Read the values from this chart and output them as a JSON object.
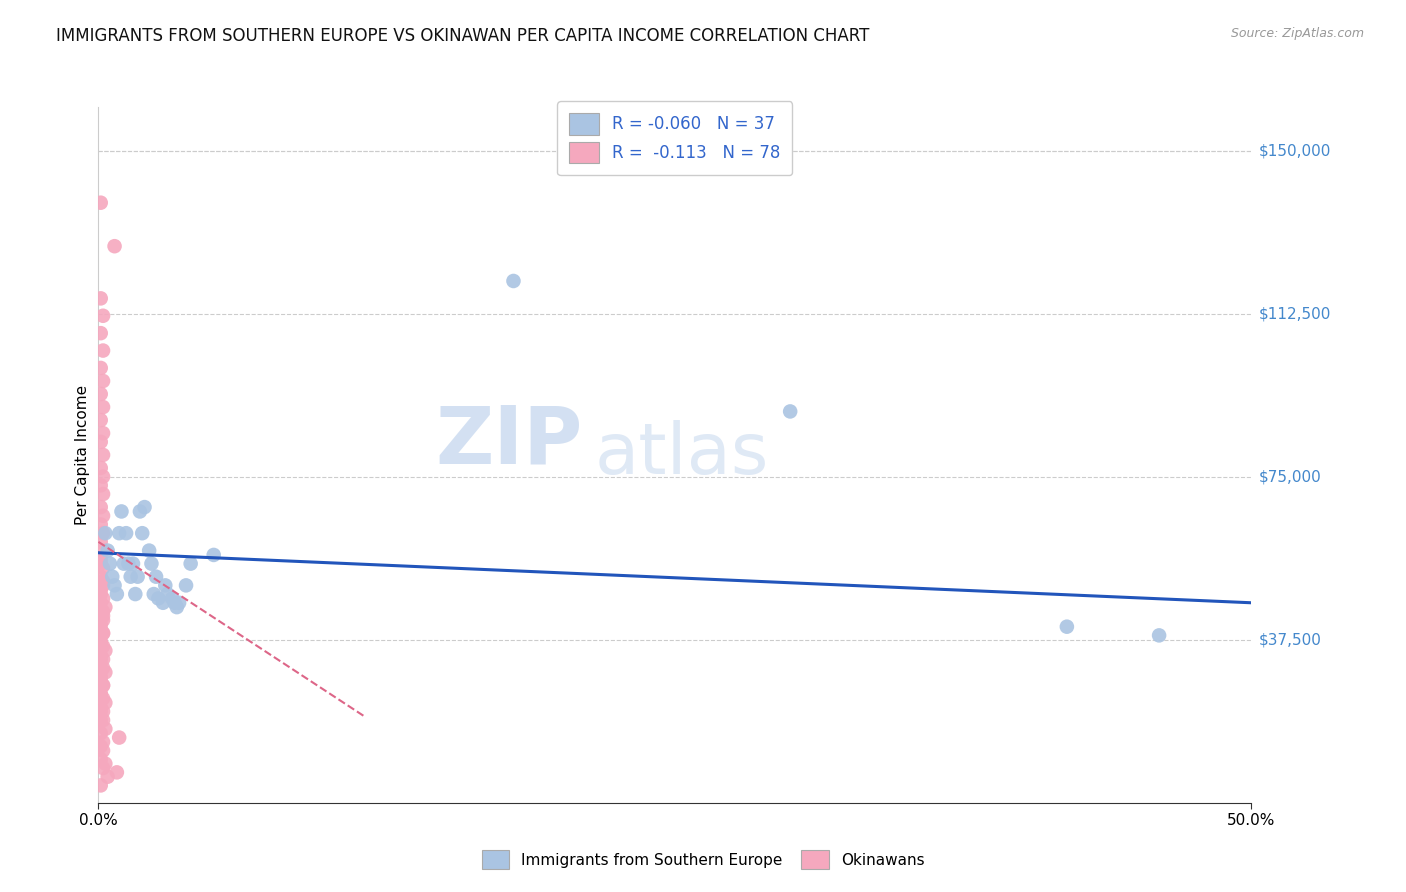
{
  "title": "IMMIGRANTS FROM SOUTHERN EUROPE VS OKINAWAN PER CAPITA INCOME CORRELATION CHART",
  "source": "Source: ZipAtlas.com",
  "ylabel": "Per Capita Income",
  "xlim": [
    0.0,
    0.5
  ],
  "ylim": [
    0,
    160000
  ],
  "ytick_vals": [
    37500,
    75000,
    112500,
    150000
  ],
  "ytick_labels": [
    "$37,500",
    "$75,000",
    "$112,500",
    "$150,000"
  ],
  "legend_blue_r": "-0.060",
  "legend_blue_n": "37",
  "legend_pink_r": "-0.113",
  "legend_pink_n": "78",
  "blue_color": "#aac4e2",
  "pink_color": "#f5a8be",
  "blue_line_color": "#2255bb",
  "pink_line_color": "#dd6688",
  "watermark_zip": "ZIP",
  "watermark_atlas": "atlas",
  "blue_scatter": [
    [
      0.003,
      62000
    ],
    [
      0.004,
      58000
    ],
    [
      0.005,
      55000
    ],
    [
      0.006,
      52000
    ],
    [
      0.007,
      50000
    ],
    [
      0.008,
      48000
    ],
    [
      0.009,
      62000
    ],
    [
      0.01,
      67000
    ],
    [
      0.011,
      55000
    ],
    [
      0.012,
      62000
    ],
    [
      0.013,
      55000
    ],
    [
      0.014,
      52000
    ],
    [
      0.015,
      55000
    ],
    [
      0.016,
      48000
    ],
    [
      0.017,
      52000
    ],
    [
      0.018,
      67000
    ],
    [
      0.019,
      62000
    ],
    [
      0.02,
      68000
    ],
    [
      0.022,
      58000
    ],
    [
      0.023,
      55000
    ],
    [
      0.024,
      48000
    ],
    [
      0.025,
      52000
    ],
    [
      0.026,
      47000
    ],
    [
      0.028,
      46000
    ],
    [
      0.029,
      50000
    ],
    [
      0.03,
      48000
    ],
    [
      0.032,
      47000
    ],
    [
      0.033,
      46000
    ],
    [
      0.034,
      45000
    ],
    [
      0.035,
      46000
    ],
    [
      0.038,
      50000
    ],
    [
      0.04,
      55000
    ],
    [
      0.05,
      57000
    ],
    [
      0.18,
      120000
    ],
    [
      0.3,
      90000
    ],
    [
      0.42,
      40500
    ],
    [
      0.46,
      38500
    ]
  ],
  "pink_scatter": [
    [
      0.001,
      138000
    ],
    [
      0.007,
      128000
    ],
    [
      0.001,
      116000
    ],
    [
      0.002,
      112000
    ],
    [
      0.001,
      108000
    ],
    [
      0.002,
      104000
    ],
    [
      0.001,
      100000
    ],
    [
      0.002,
      97000
    ],
    [
      0.001,
      94000
    ],
    [
      0.002,
      91000
    ],
    [
      0.001,
      88000
    ],
    [
      0.002,
      85000
    ],
    [
      0.001,
      83000
    ],
    [
      0.002,
      80000
    ],
    [
      0.001,
      77000
    ],
    [
      0.002,
      75000
    ],
    [
      0.001,
      73000
    ],
    [
      0.002,
      71000
    ],
    [
      0.001,
      68000
    ],
    [
      0.002,
      66000
    ],
    [
      0.001,
      64000
    ],
    [
      0.002,
      62000
    ],
    [
      0.001,
      60000
    ],
    [
      0.002,
      58000
    ],
    [
      0.001,
      56000
    ],
    [
      0.002,
      54000
    ],
    [
      0.001,
      52000
    ],
    [
      0.002,
      51000
    ],
    [
      0.001,
      49000
    ],
    [
      0.002,
      47000
    ],
    [
      0.001,
      46000
    ],
    [
      0.002,
      44000
    ],
    [
      0.001,
      43000
    ],
    [
      0.002,
      42000
    ],
    [
      0.001,
      40000
    ],
    [
      0.002,
      39000
    ],
    [
      0.001,
      37000
    ],
    [
      0.002,
      36000
    ],
    [
      0.001,
      34000
    ],
    [
      0.002,
      33000
    ],
    [
      0.001,
      31000
    ],
    [
      0.003,
      30000
    ],
    [
      0.001,
      28000
    ],
    [
      0.002,
      27000
    ],
    [
      0.001,
      25000
    ],
    [
      0.002,
      24000
    ],
    [
      0.001,
      22000
    ],
    [
      0.002,
      21000
    ],
    [
      0.001,
      19000
    ],
    [
      0.003,
      17000
    ],
    [
      0.001,
      16000
    ],
    [
      0.002,
      14000
    ],
    [
      0.001,
      13000
    ],
    [
      0.002,
      12000
    ],
    [
      0.001,
      10000
    ],
    [
      0.003,
      9000
    ],
    [
      0.002,
      8000
    ],
    [
      0.004,
      6000
    ],
    [
      0.001,
      4000
    ],
    [
      0.008,
      7000
    ],
    [
      0.001,
      55000
    ],
    [
      0.002,
      50000
    ],
    [
      0.001,
      48000
    ],
    [
      0.003,
      45000
    ],
    [
      0.002,
      43000
    ],
    [
      0.001,
      41000
    ],
    [
      0.002,
      39000
    ],
    [
      0.001,
      37000
    ],
    [
      0.003,
      35000
    ],
    [
      0.001,
      33000
    ],
    [
      0.002,
      31000
    ],
    [
      0.001,
      29000
    ],
    [
      0.002,
      27000
    ],
    [
      0.001,
      25000
    ],
    [
      0.003,
      23000
    ],
    [
      0.001,
      21000
    ],
    [
      0.002,
      19000
    ],
    [
      0.009,
      15000
    ]
  ],
  "blue_line_x": [
    0.0,
    0.5
  ],
  "blue_line_y": [
    57500,
    46000
  ],
  "pink_line_x": [
    0.0,
    0.115
  ],
  "pink_line_y": [
    60000,
    20000
  ]
}
